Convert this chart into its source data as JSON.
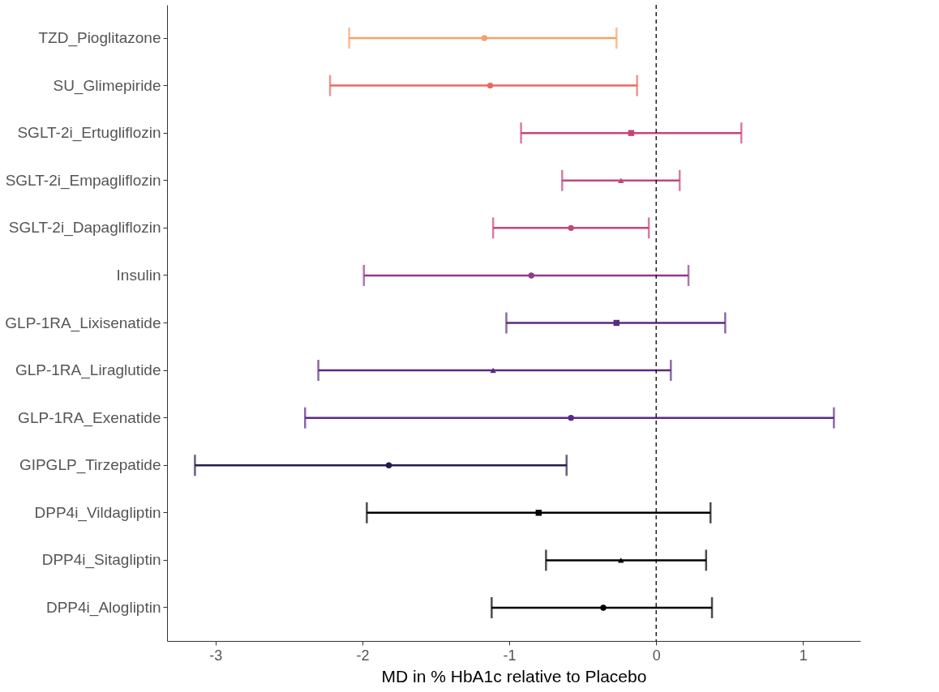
{
  "chart_data": {
    "type": "scatter",
    "orientation": "horizontal",
    "xlabel": "MD in % HbA1c relative to Placebo",
    "categories": [
      "TZD_Pioglitazone",
      "SU_Glimepiride",
      "SGLT-2i_Ertugliflozin",
      "SGLT-2i_Empagliflozin",
      "SGLT-2i_Dapagliflozin",
      "Insulin",
      "GLP-1RA_Lixisenatide",
      "GLP-1RA_Liraglutide",
      "GLP-1RA_Exenatide",
      "GIPGLP_Tirzepatide",
      "DPP4i_Vildagliptin",
      "DPP4i_Sitagliptin",
      "DPP4i_Alogliptin"
    ],
    "series": [
      {
        "marker": "circle",
        "values": [
          -1.17,
          -1.13,
          null,
          null,
          -0.58,
          -0.85,
          null,
          null,
          -0.58,
          -1.82,
          null,
          null,
          -0.36
        ],
        "errors": [
          [
            -2.09,
            -0.27
          ],
          [
            -2.22,
            -0.13
          ],
          null,
          null,
          [
            -1.11,
            -0.05
          ],
          [
            -1.99,
            0.22
          ],
          null,
          null,
          [
            -2.39,
            1.21
          ],
          [
            -3.14,
            -0.61
          ],
          null,
          null,
          [
            -1.12,
            0.38
          ]
        ],
        "colors": [
          "#f6a06a",
          "#e76a62",
          null,
          null,
          "#c4467c",
          "#933a8a",
          null,
          null,
          "#5a2a82",
          "#241c48",
          null,
          null,
          "#000000"
        ]
      },
      {
        "marker": "square",
        "values": [
          null,
          null,
          -0.17,
          null,
          null,
          null,
          -0.27,
          null,
          null,
          null,
          -0.8,
          null,
          null
        ],
        "errors": [
          null,
          null,
          [
            -0.92,
            0.58
          ],
          null,
          null,
          null,
          [
            -1.02,
            0.47
          ],
          null,
          null,
          null,
          [
            -1.97,
            0.37
          ],
          null,
          null
        ],
        "colors": [
          null,
          null,
          "#c4467c",
          null,
          null,
          null,
          "#5a2a82",
          null,
          null,
          null,
          "#000000",
          null,
          null
        ]
      },
      {
        "marker": "triangle",
        "values": [
          null,
          null,
          null,
          -0.24,
          null,
          null,
          null,
          -1.11,
          null,
          null,
          null,
          -0.24,
          null
        ],
        "errors": [
          null,
          null,
          null,
          [
            -0.64,
            0.16
          ],
          null,
          null,
          null,
          [
            -2.3,
            0.1
          ],
          null,
          null,
          null,
          [
            -0.75,
            0.34
          ],
          null
        ],
        "colors": [
          null,
          null,
          null,
          "#c4467c",
          null,
          null,
          null,
          "#5a2a82",
          null,
          null,
          null,
          "#000000",
          null
        ]
      }
    ],
    "xlim": [
      -3.33,
      1.39
    ],
    "xticks": [
      -3,
      -2,
      -1,
      0,
      1
    ],
    "ref_lines": [
      {
        "axis": "x",
        "value": 0,
        "line_style": "dashed",
        "color": "#000000"
      }
    ],
    "grid": false
  }
}
